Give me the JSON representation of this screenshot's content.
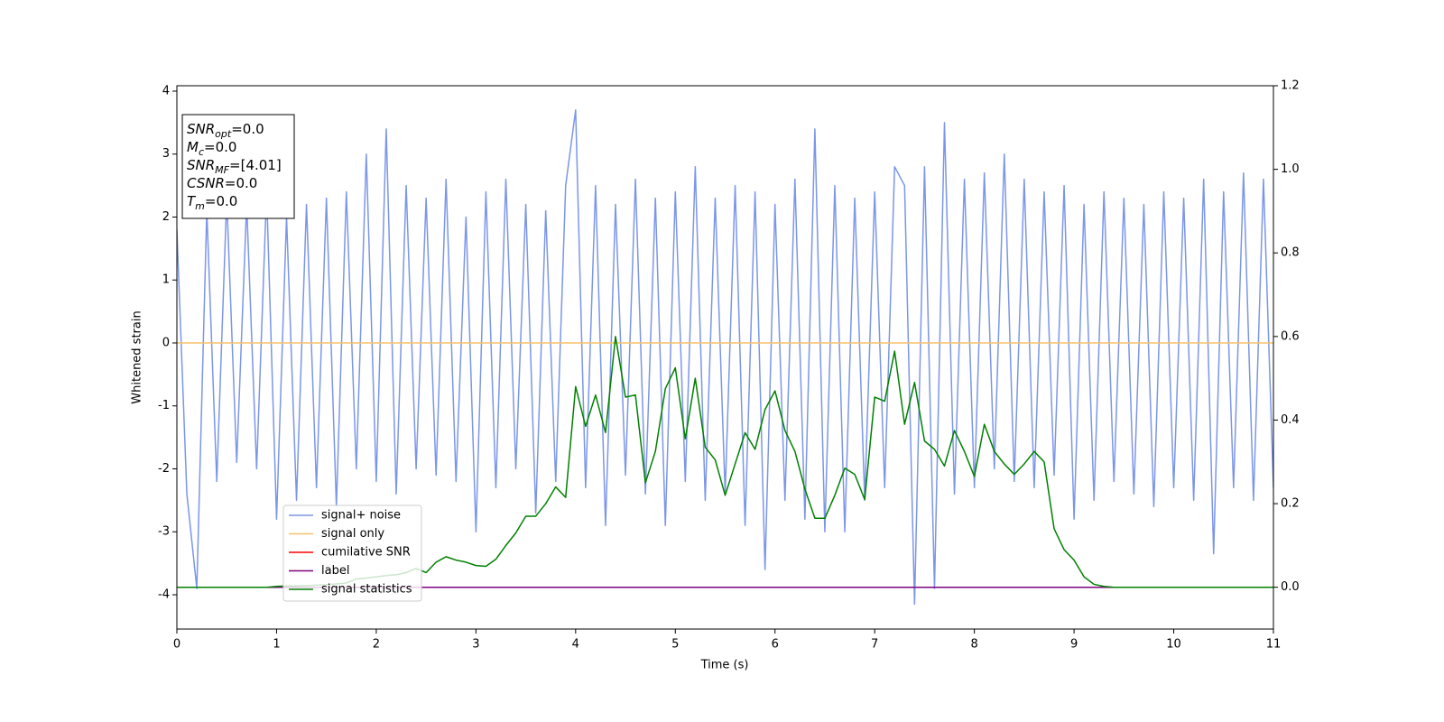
{
  "chart_data": {
    "type": "line",
    "xlabel": "Time (s)",
    "ylabel": "Whitened strain",
    "xlim": [
      0,
      11
    ],
    "xticks": [
      0,
      1,
      2,
      3,
      4,
      5,
      6,
      7,
      8,
      9,
      10,
      11
    ],
    "ylim": [
      -4.545,
      4.086
    ],
    "yticks": [
      -4,
      -3,
      -2,
      -1,
      0,
      1,
      2,
      3,
      4
    ],
    "y2lim": [
      -0.1,
      1.2
    ],
    "y2ticks": [
      {
        "value": 0,
        "label": "0.0"
      },
      {
        "value": 0.2,
        "label": "0.2"
      },
      {
        "value": 0.4,
        "label": "0.4"
      },
      {
        "value": 0.6,
        "label": "0.6"
      },
      {
        "value": 0.8,
        "label": "0.8"
      },
      {
        "value": 1.0,
        "label": "1.0"
      },
      {
        "value": 1.2,
        "label": "1.2"
      }
    ],
    "legend": "lower left",
    "annotation": [
      {
        "main": "SNR",
        "sub": "opt",
        "rest": "=0.0"
      },
      {
        "main": "M",
        "sub": "c",
        "rest": "=0.0"
      },
      {
        "main": "SNR",
        "sub": "MF",
        "rest": "=[4.01]"
      },
      {
        "main": "CSNR",
        "rest": "=0.0"
      },
      {
        "main": "T",
        "sub": "m",
        "rest": "=0.0"
      }
    ],
    "x": [
      0,
      0.1,
      0.2,
      0.3,
      0.4,
      0.5,
      0.6,
      0.7,
      0.8,
      0.9,
      1,
      1.1,
      1.2,
      1.3,
      1.4,
      1.5,
      1.6,
      1.7,
      1.8,
      1.9,
      2,
      2.1,
      2.2,
      2.3,
      2.4,
      2.5,
      2.6,
      2.7,
      2.8,
      2.9,
      3,
      3.1,
      3.2,
      3.3,
      3.4,
      3.5,
      3.6,
      3.7,
      3.8,
      3.9,
      4,
      4.1,
      4.2,
      4.3,
      4.4,
      4.5,
      4.6,
      4.7,
      4.8,
      4.9,
      5,
      5.1,
      5.2,
      5.3,
      5.4,
      5.5,
      5.6,
      5.7,
      5.8,
      5.9,
      6,
      6.1,
      6.2,
      6.3,
      6.4,
      6.5,
      6.6,
      6.7,
      6.8,
      6.9,
      7,
      7.1,
      7.2,
      7.3,
      7.4,
      7.5,
      7.6,
      7.7,
      7.8,
      7.9,
      8,
      8.1,
      8.2,
      8.3,
      8.4,
      8.5,
      8.6,
      8.7,
      8.8,
      8.9,
      9,
      9.1,
      9.2,
      9.3,
      9.4,
      9.5,
      9.6,
      9.7,
      9.8,
      9.9,
      10,
      10.1,
      10.2,
      10.3,
      10.4,
      10.5,
      10.6,
      10.7,
      10.8,
      10.9,
      11
    ],
    "series": [
      {
        "name": "signal+ noise",
        "color": "#7b96e8",
        "values": [
          1.8,
          -2.4,
          -3.9,
          2.1,
          -2.2,
          2.3,
          -1.9,
          2.2,
          -2.0,
          2.4,
          -2.8,
          2.0,
          -2.5,
          2.2,
          -2.3,
          2.3,
          -2.6,
          2.4,
          -2.0,
          3.0,
          -2.2,
          3.4,
          -2.4,
          2.5,
          -2.0,
          2.3,
          -2.1,
          2.6,
          -2.2,
          2.0,
          -3.0,
          2.4,
          -2.3,
          2.6,
          -2.0,
          2.2,
          -2.7,
          2.1,
          -2.2,
          2.5,
          3.7,
          -2.3,
          2.5,
          -2.9,
          2.2,
          -2.1,
          2.6,
          -2.4,
          2.3,
          -2.9,
          2.4,
          -2.2,
          2.8,
          -2.5,
          2.3,
          -2.4,
          2.5,
          -2.9,
          2.4,
          -3.6,
          2.2,
          -2.5,
          2.6,
          -2.8,
          3.4,
          -3.0,
          2.5,
          -3.0,
          2.3,
          -2.5,
          2.4,
          -2.3,
          2.8,
          2.5,
          -4.15,
          2.8,
          -3.9,
          3.5,
          -2.4,
          2.6,
          -2.3,
          2.7,
          -2.0,
          3.0,
          -2.2,
          2.6,
          -2.3,
          2.4,
          -2.1,
          2.5,
          -2.8,
          2.2,
          -2.5,
          2.4,
          -2.2,
          2.3,
          -2.4,
          2.2,
          -2.6,
          2.4,
          -2.3,
          2.3,
          -2.5,
          2.6,
          -3.35,
          2.4,
          -2.3,
          2.7,
          -2.5,
          2.6,
          -2.3
        ]
      },
      {
        "name": "signal only",
        "color": "#f5c26b",
        "x": [
          0,
          11
        ],
        "values": [
          0,
          0
        ]
      },
      {
        "name": "cumilative SNR",
        "color": "#ff0000",
        "axis": "y2",
        "x": [
          0,
          11
        ],
        "values": [
          0,
          0
        ]
      },
      {
        "name": "label",
        "color": "#800080",
        "axis": "y2",
        "x": [
          0,
          11
        ],
        "values": [
          0,
          0
        ]
      },
      {
        "name": "signal statistics",
        "color": "#008000",
        "axis": "y2",
        "values": [
          0,
          0,
          0,
          0,
          0,
          0,
          0,
          0,
          0,
          0,
          0.002,
          0.003,
          0.003,
          0.004,
          0.005,
          0.006,
          0.008,
          0.01,
          0.02,
          0.022,
          0.025,
          0.028,
          0.03,
          0.035,
          0.045,
          0.035,
          0.06,
          0.073,
          0.065,
          0.06,
          0.052,
          0.05,
          0.067,
          0.1,
          0.13,
          0.17,
          0.17,
          0.2,
          0.24,
          0.215,
          0.48,
          0.385,
          0.46,
          0.37,
          0.6,
          0.455,
          0.46,
          0.25,
          0.325,
          0.475,
          0.525,
          0.355,
          0.5,
          0.335,
          0.305,
          0.22,
          0.295,
          0.37,
          0.33,
          0.425,
          0.47,
          0.375,
          0.325,
          0.235,
          0.165,
          0.165,
          0.22,
          0.285,
          0.27,
          0.21,
          0.455,
          0.445,
          0.565,
          0.39,
          0.49,
          0.35,
          0.33,
          0.29,
          0.375,
          0.325,
          0.265,
          0.39,
          0.325,
          0.295,
          0.27,
          0.295,
          0.325,
          0.3,
          0.14,
          0.09,
          0.065,
          0.025,
          0.007,
          0.002,
          0,
          0,
          0,
          0,
          0,
          0,
          0,
          0,
          0,
          0,
          0,
          0,
          0,
          0,
          0,
          0,
          0
        ]
      }
    ]
  }
}
